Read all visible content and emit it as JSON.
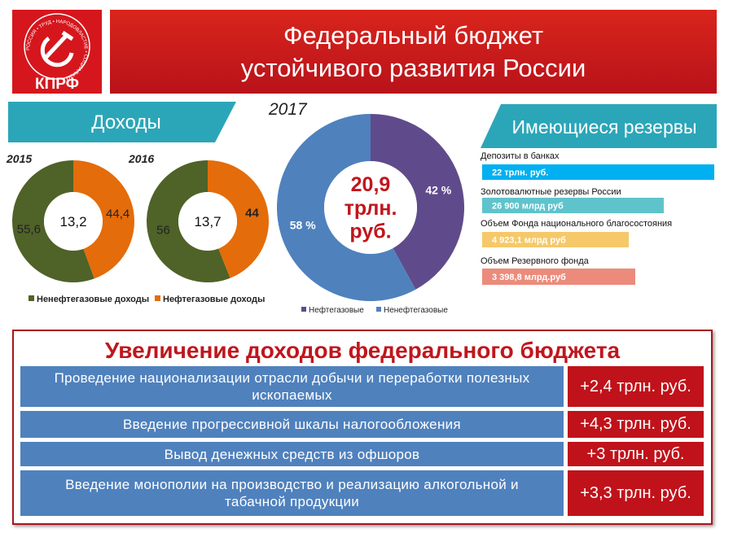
{
  "header": {
    "logo": "КПРФ",
    "logo_motto": "РОССИЯ • ТРУД • НАРОДОВЛАСТИЕ • СОЦИАЛИЗМ",
    "title_lines": [
      "Федеральный бюджет",
      "устойчивого развития России"
    ]
  },
  "revenue": {
    "title": "Доходы",
    "legend": [
      "Ненефтегазовые доходы",
      "Нефтегазовые доходы"
    ]
  },
  "chart_data": [
    {
      "type": "donut",
      "title": "2015",
      "values": [
        55.6,
        44.4
      ],
      "value_labels": [
        "55,6",
        "44,4"
      ],
      "colors": [
        "#4f6228",
        "#e46c0a"
      ],
      "direction": "counterclockwise",
      "center_label": [
        "13,2"
      ],
      "label_color": "#222222"
    },
    {
      "type": "donut",
      "title": "2016",
      "values": [
        56,
        44
      ],
      "colors": [
        "#4f6228",
        "#e46c0a"
      ],
      "direction": "counterclockwise",
      "center_label": [
        "13,7"
      ],
      "label_color": "#222222"
    },
    {
      "type": "donut",
      "title": "2017",
      "categories": [
        "Нефтегазовые",
        "Ненефтегазовые"
      ],
      "values": [
        42,
        58
      ],
      "value_labels": [
        "42 %",
        "58 %"
      ],
      "colors": [
        "#5f4b8b",
        "#4f81bd"
      ],
      "direction": "clockwise",
      "center_label": [
        "20,9",
        "трлн.",
        "руб."
      ],
      "label_color": "#ffffff"
    }
  ],
  "reserves": {
    "title": "Имеющиеся резервы",
    "items": [
      {
        "name": "Депозиты в банках",
        "amount": "22 трлн. руб.",
        "color": "#00b0f0"
      },
      {
        "name": "Золотовалютные резервы России",
        "amount": "26 900 млрд руб",
        "color": "#5fc3cc"
      },
      {
        "name": "Объем Фонда национального  благосостояния",
        "amount": "4 923,1 млрд руб",
        "color": "#f5c96a"
      },
      {
        "name": "Объем Резервного фонда",
        "amount": "3 398,8 млрд.руб",
        "color": "#ec8b7c"
      }
    ]
  },
  "increase": {
    "title": "Увеличение доходов федерального бюджета",
    "rows": [
      {
        "measure": "Проведение национализации отрасли добычи и переработки полезных ископаемых",
        "amount": "+2,4 трлн. руб."
      },
      {
        "measure": "Введение прогрессивной шкалы налогообложения",
        "amount": "+4,3 трлн. руб."
      },
      {
        "measure": "Вывод денежных средств из офшоров",
        "amount": "+3 трлн. руб."
      },
      {
        "measure": "Введение монополии на производство и реализацию алкогольной и табачной продукции",
        "amount": "+3,3 трлн. руб."
      }
    ]
  }
}
